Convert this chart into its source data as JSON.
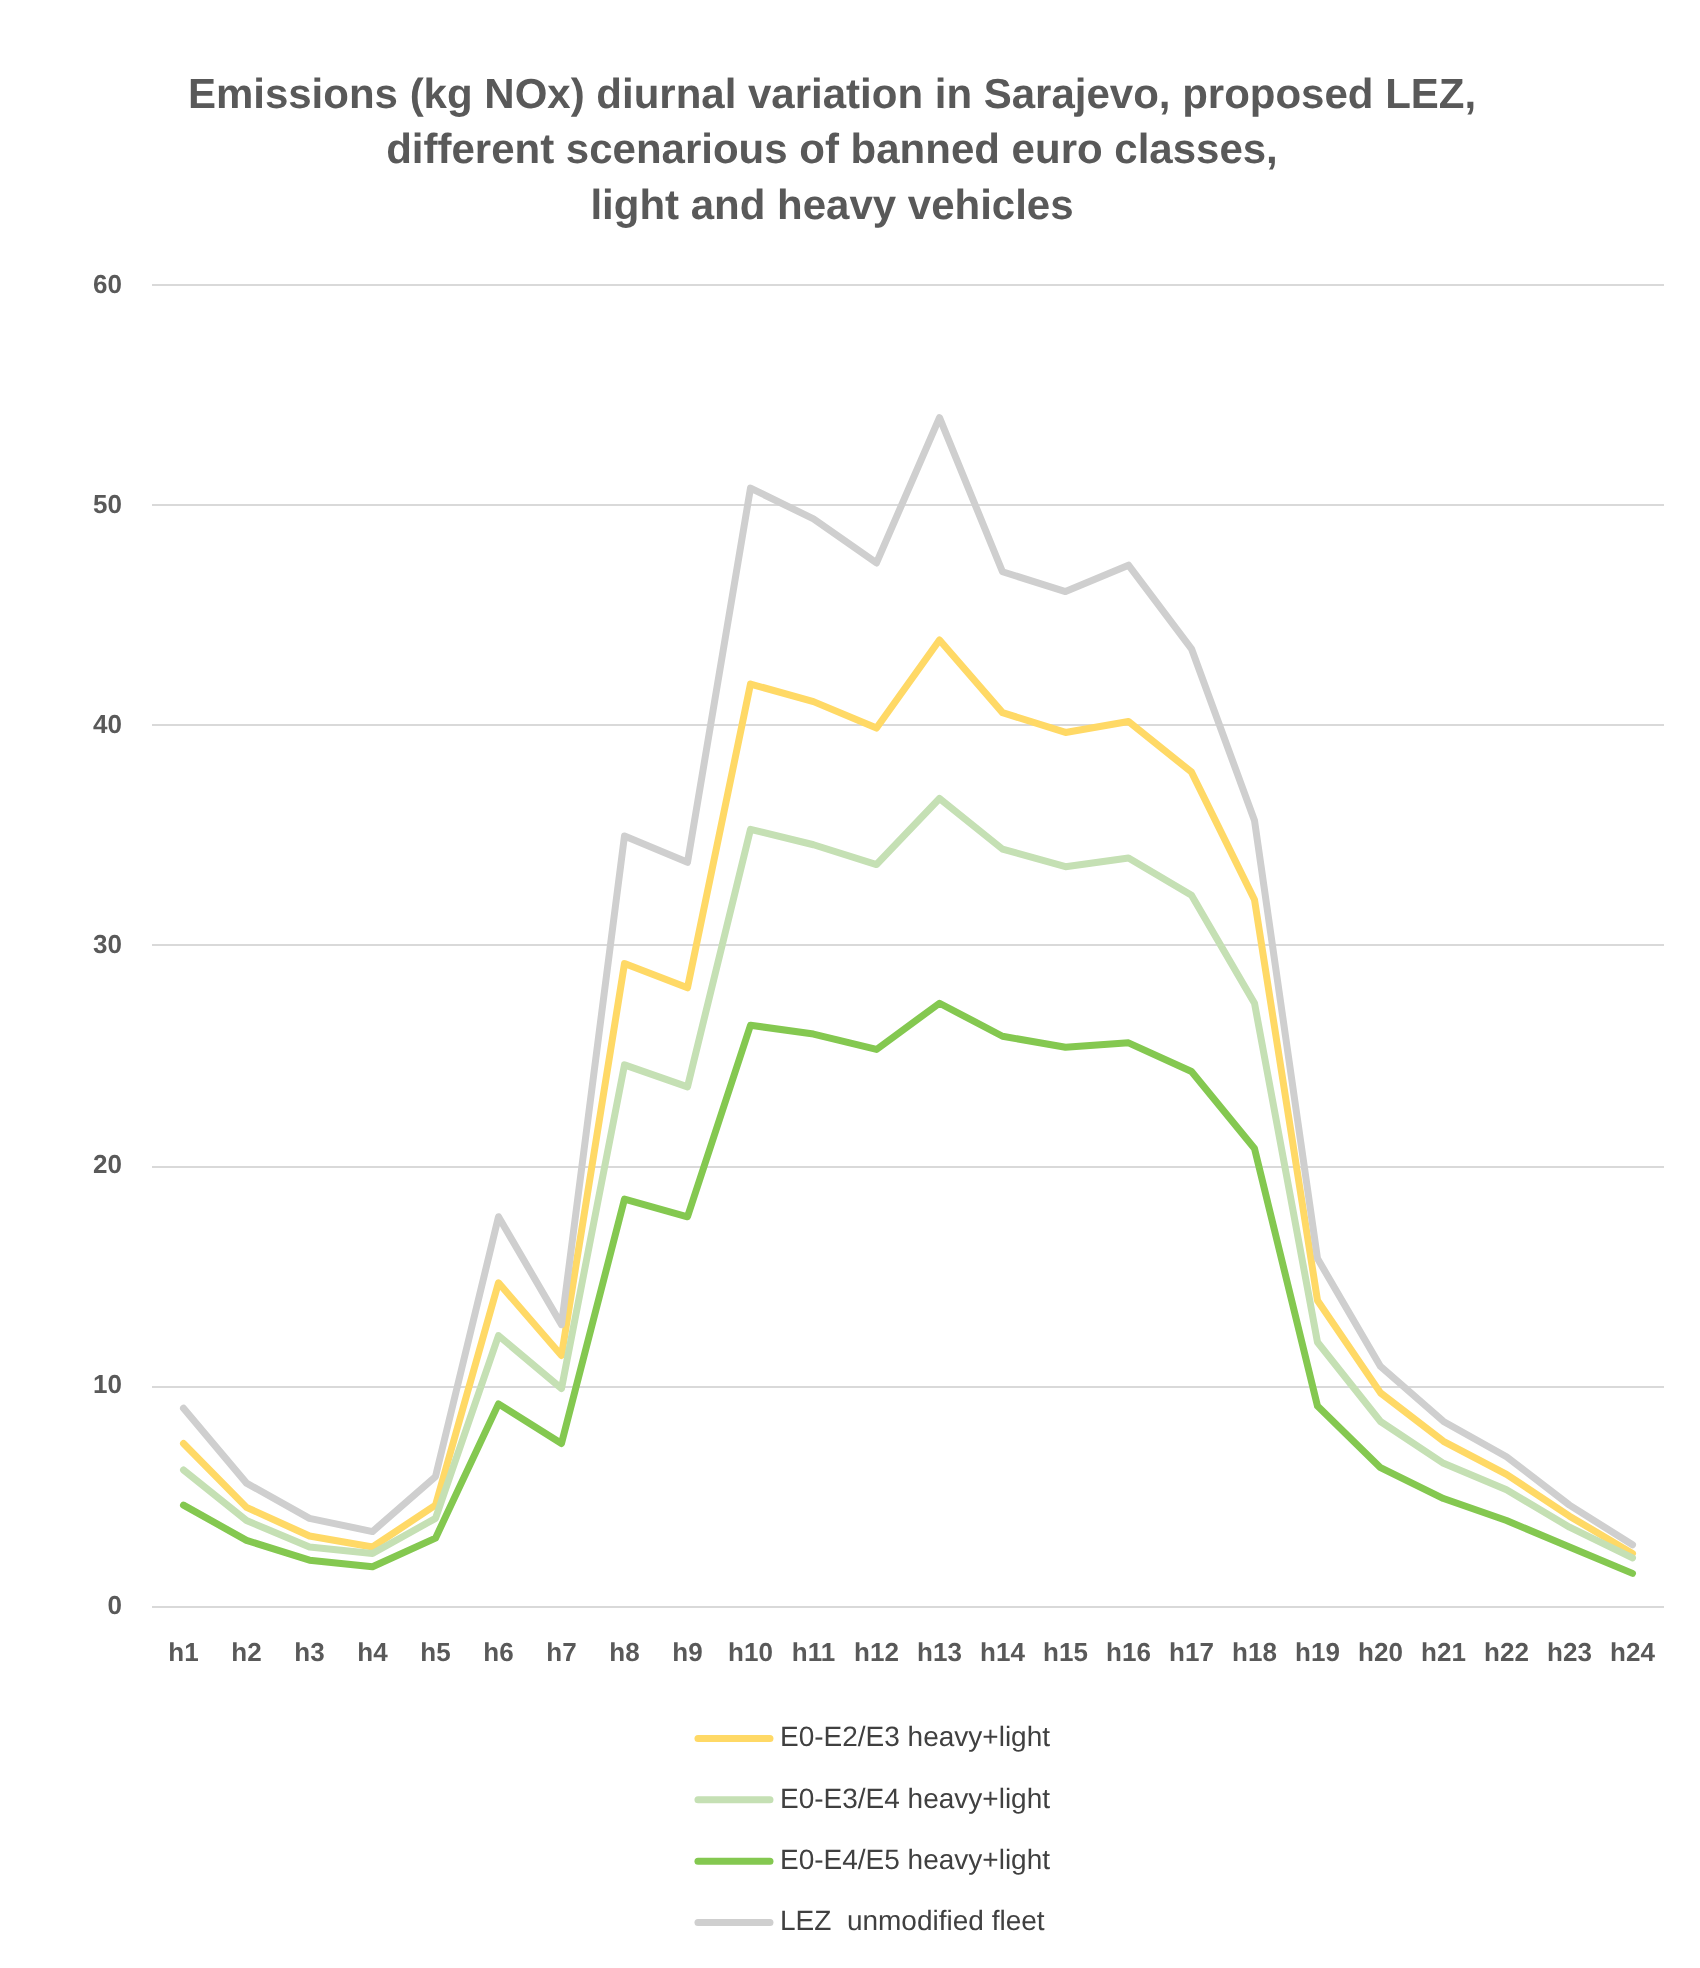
{
  "chart_data": {
    "type": "line",
    "title": "Emissions (kg NOx) diurnal variation in Sarajevo, proposed LEZ,\ndifferent scenarious of banned euro classes,\nlight and heavy vehicles",
    "categories": [
      "h1",
      "h2",
      "h3",
      "h4",
      "h5",
      "h6",
      "h7",
      "h8",
      "h9",
      "h10",
      "h11",
      "h12",
      "h13",
      "h14",
      "h15",
      "h16",
      "h17",
      "h18",
      "h19",
      "h20",
      "h21",
      "h22",
      "h23",
      "h24"
    ],
    "series": [
      {
        "name": "E0-E2/E3 heavy+light",
        "color": "#ffd966",
        "values": [
          7.4,
          4.5,
          3.2,
          2.7,
          4.6,
          14.7,
          11.4,
          29.2,
          28.1,
          41.9,
          41.1,
          39.9,
          43.9,
          40.6,
          39.7,
          40.2,
          37.9,
          32.1,
          13.9,
          9.7,
          7.5,
          6.0,
          4.1,
          2.4
        ]
      },
      {
        "name": "E0-E3/E4 heavy+light",
        "color": "#c5e0b4",
        "values": [
          6.2,
          3.9,
          2.7,
          2.4,
          4.0,
          12.3,
          9.9,
          24.6,
          23.6,
          35.3,
          34.6,
          33.7,
          36.7,
          34.4,
          33.6,
          34.0,
          32.3,
          27.4,
          12.0,
          8.4,
          6.5,
          5.3,
          3.6,
          2.2
        ]
      },
      {
        "name": "E0-E4/E5 heavy+light",
        "color": "#84c850",
        "values": [
          4.6,
          3.0,
          2.1,
          1.8,
          3.1,
          9.2,
          7.4,
          18.5,
          17.7,
          26.4,
          26.0,
          25.3,
          27.4,
          25.9,
          25.4,
          25.6,
          24.3,
          20.8,
          9.1,
          6.3,
          4.9,
          3.9,
          2.7,
          1.5
        ]
      },
      {
        "name": "LEZ  unmodified fleet",
        "color": "#cfcfcf",
        "values": [
          9.0,
          5.6,
          4.0,
          3.4,
          5.9,
          17.7,
          12.8,
          35.0,
          33.8,
          50.8,
          49.4,
          47.4,
          54.0,
          47.0,
          46.1,
          47.3,
          43.5,
          35.7,
          15.8,
          10.9,
          8.4,
          6.8,
          4.6,
          2.8
        ]
      }
    ],
    "ylim": [
      0,
      60
    ],
    "yticks": [
      0,
      10,
      20,
      30,
      40,
      50,
      60
    ],
    "grid": "y",
    "legend": "bottom",
    "marker": "none",
    "line_style": "solid"
  }
}
